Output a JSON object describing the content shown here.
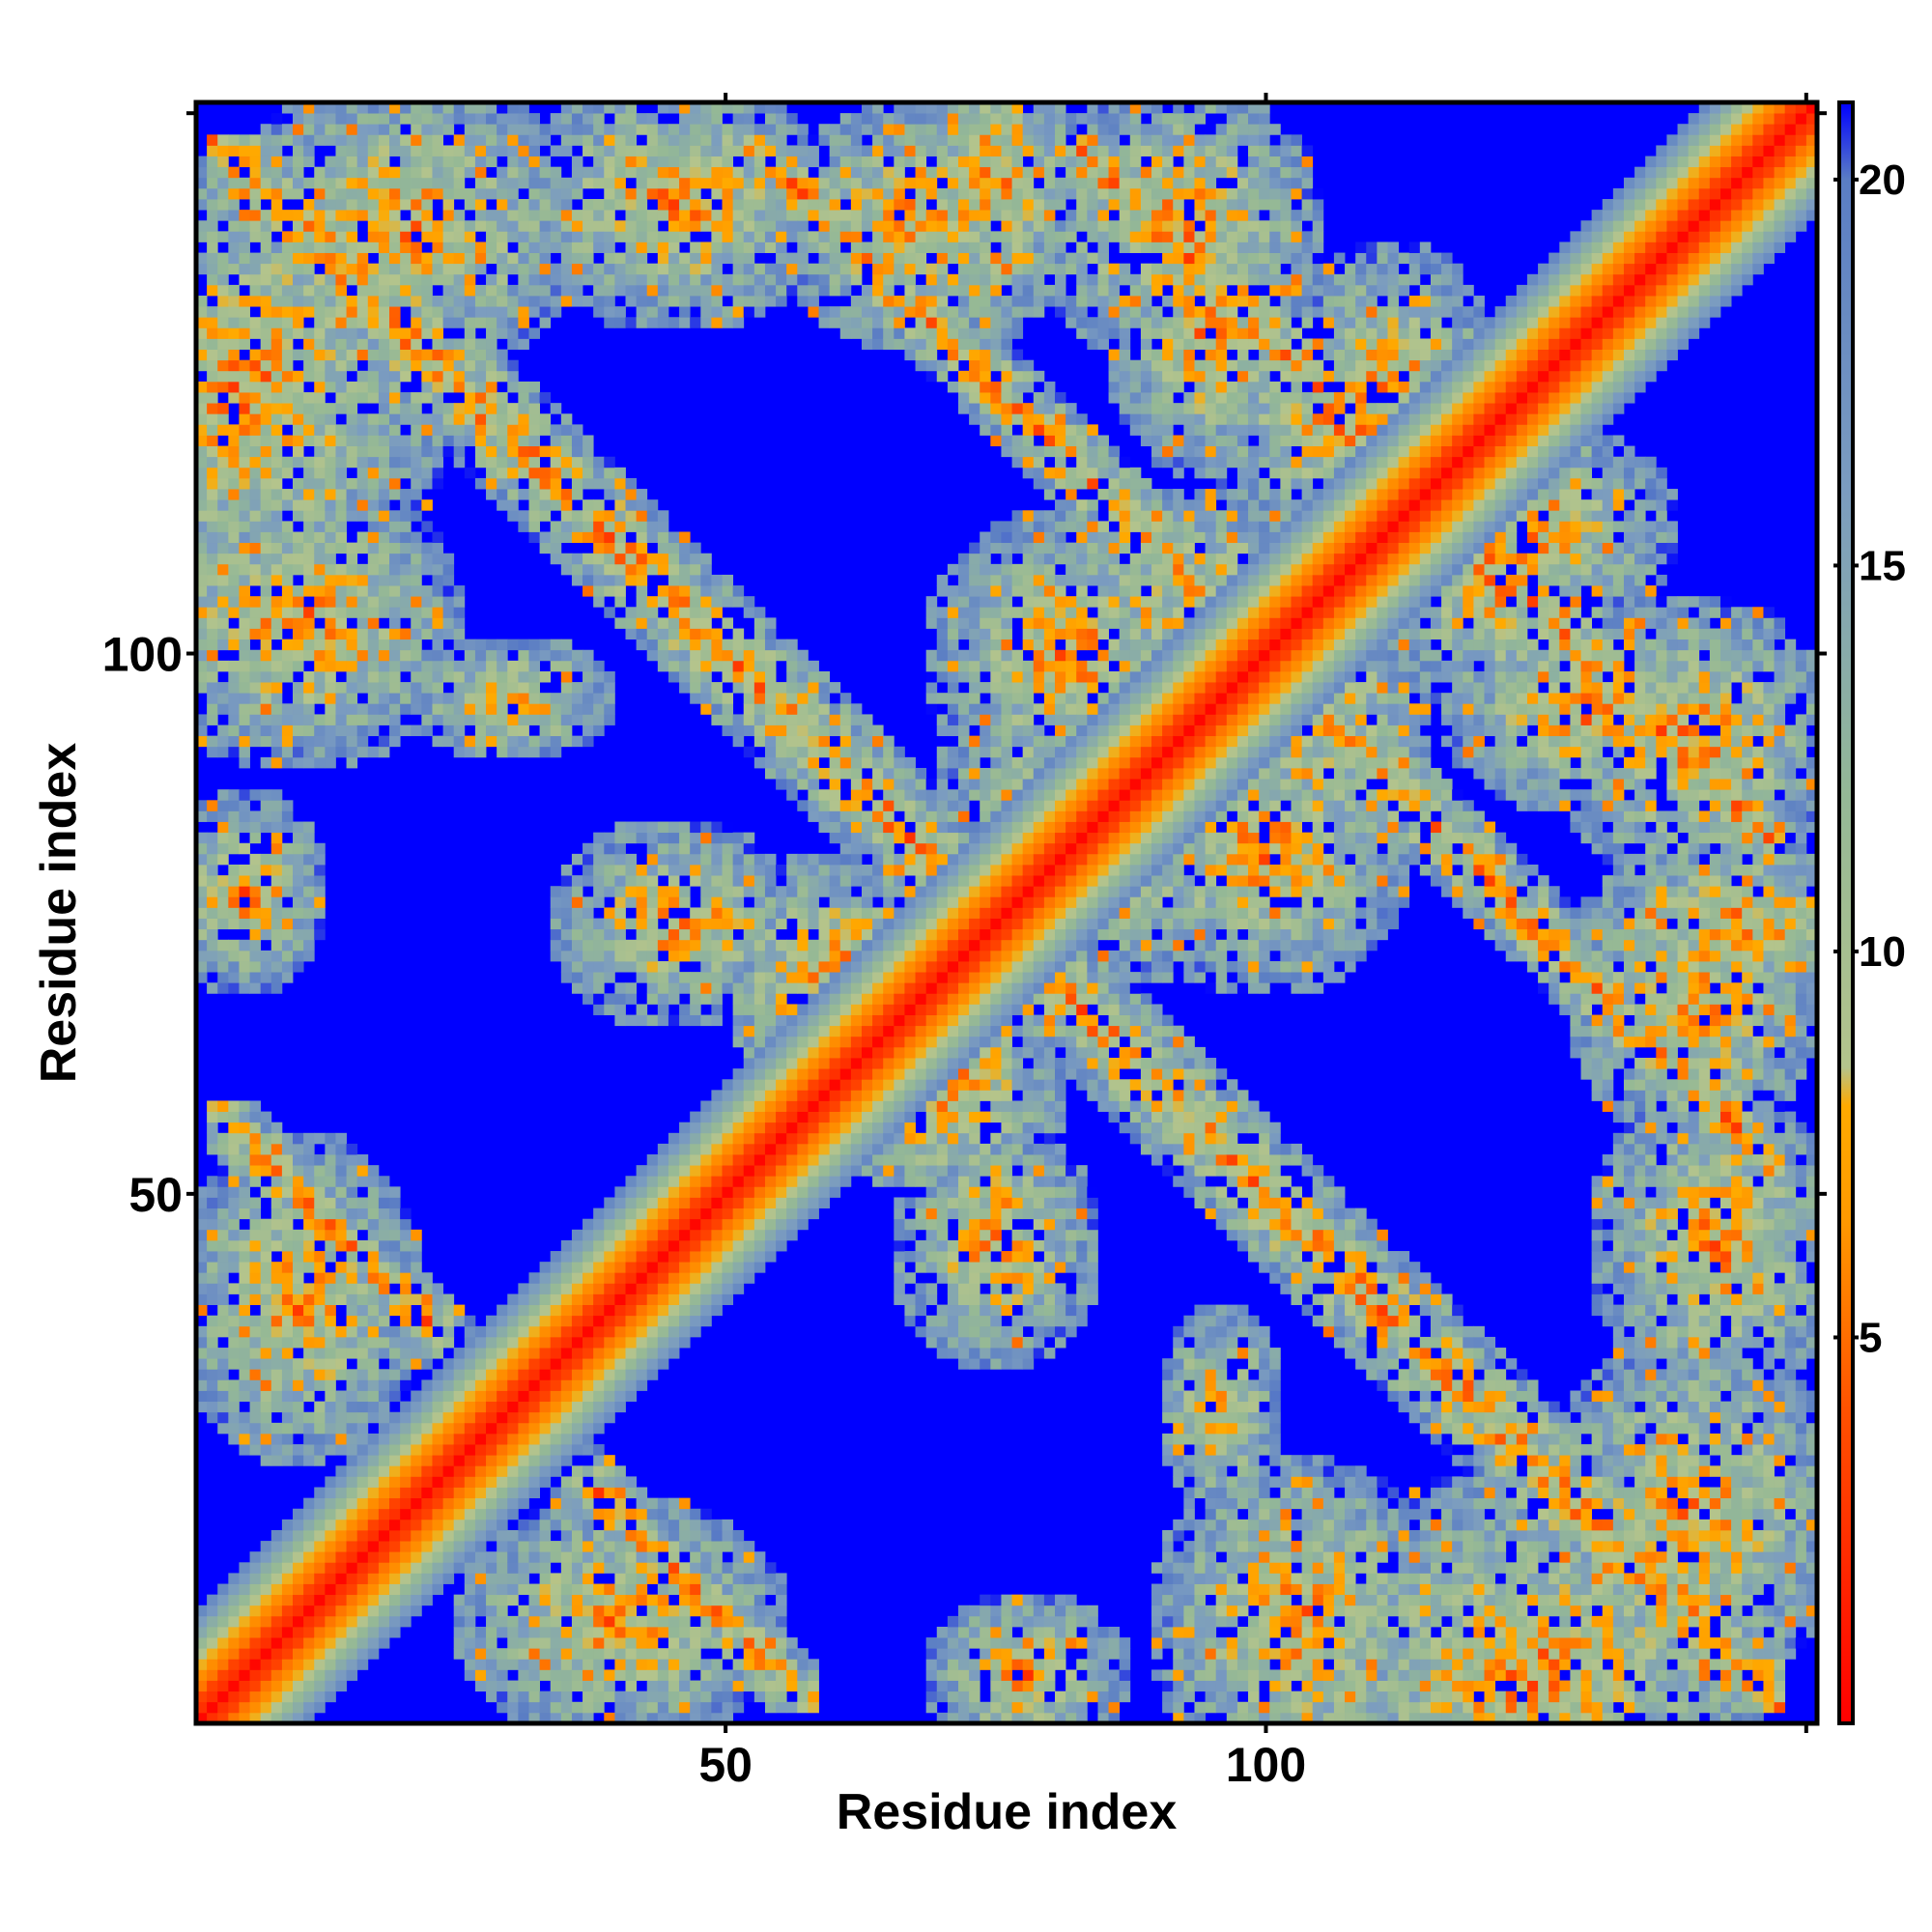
{
  "chart_data": {
    "type": "heatmap",
    "title": "",
    "xlabel": "Residue index",
    "ylabel": "Residue index",
    "x_range": [
      1,
      151
    ],
    "y_range": [
      1,
      151
    ],
    "x_ticks": [
      50,
      100
    ],
    "y_ticks": [
      50,
      100
    ],
    "n_residues": 151,
    "colorbar": {
      "range": [
        0,
        21
      ],
      "ticks": [
        5,
        10,
        15,
        20
      ],
      "stops": [
        {
          "value": 0,
          "color": "#ff0000"
        },
        {
          "value": 4,
          "color": "#ff5000"
        },
        {
          "value": 6.5,
          "color": "#ff9900"
        },
        {
          "value": 8,
          "color": "#ffaa00"
        },
        {
          "value": 8.5,
          "color": "#b4c48c"
        },
        {
          "value": 12,
          "color": "#94b896"
        },
        {
          "value": 16,
          "color": "#7b9cc0"
        },
        {
          "value": 20,
          "color": "#5a7dc4"
        },
        {
          "value": 21,
          "color": "#0000ff"
        }
      ]
    },
    "off_color": "#0000ff",
    "structure_notes": "Symmetric residue-residue contact distance map; red diagonal band with anti-diagonal beta-sheet contact bands and off-diagonal contact clusters."
  }
}
